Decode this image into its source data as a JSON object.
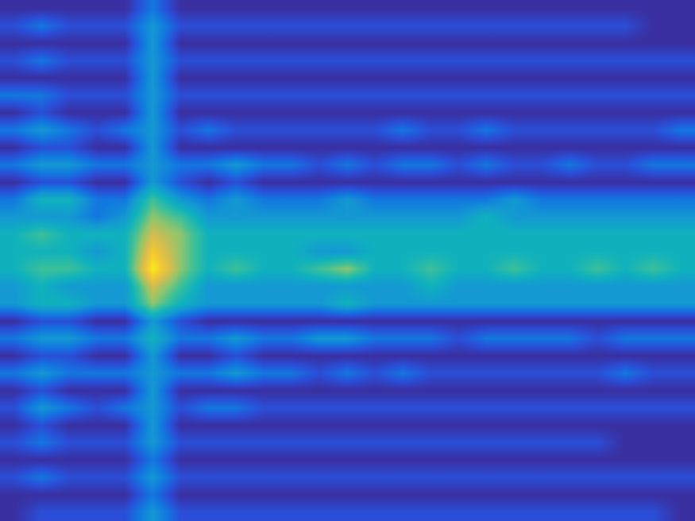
{
  "chart_data": {
    "type": "heatmap",
    "tick_labels": false,
    "clim": [
      0,
      9
    ],
    "cells": [
      [
        0,
        0,
        0,
        0,
        0,
        2,
        0,
        0,
        0,
        0,
        0,
        0,
        0,
        0,
        0,
        0,
        0,
        0,
        0,
        0,
        0,
        0,
        0,
        0,
        0
      ],
      [
        1,
        2,
        1,
        1,
        1,
        3,
        1,
        1,
        1,
        1,
        1,
        1,
        1,
        1,
        1,
        1,
        1,
        1,
        1,
        1,
        1,
        1,
        1,
        0,
        0
      ],
      [
        0,
        0,
        0,
        0,
        0,
        3,
        0,
        0,
        0,
        0,
        0,
        0,
        0,
        0,
        0,
        0,
        0,
        0,
        0,
        0,
        0,
        0,
        0,
        0,
        0
      ],
      [
        1,
        2,
        1,
        1,
        1,
        3,
        1,
        1,
        1,
        1,
        1,
        1,
        1,
        1,
        1,
        1,
        1,
        1,
        1,
        1,
        1,
        1,
        1,
        1,
        1
      ],
      [
        0,
        0,
        0,
        0,
        0,
        3,
        0,
        0,
        0,
        0,
        0,
        0,
        0,
        0,
        0,
        0,
        0,
        0,
        0,
        0,
        0,
        0,
        0,
        0,
        0
      ],
      [
        2,
        2,
        1,
        1,
        1,
        3,
        1,
        1,
        1,
        1,
        1,
        1,
        1,
        1,
        1,
        1,
        1,
        1,
        1,
        1,
        1,
        1,
        1,
        1,
        1
      ],
      [
        0,
        1,
        0,
        0,
        0,
        3,
        0,
        0,
        0,
        0,
        0,
        0,
        0,
        0,
        0,
        0,
        0,
        0,
        0,
        0,
        0,
        0,
        0,
        0,
        0
      ],
      [
        2,
        3,
        2,
        1,
        2,
        3,
        1,
        2,
        1,
        1,
        1,
        1,
        1,
        1,
        2,
        1,
        1,
        2,
        1,
        1,
        1,
        1,
        1,
        1,
        2
      ],
      [
        0,
        1,
        1,
        0,
        0,
        3,
        0,
        0,
        0,
        0,
        0,
        0,
        0,
        0,
        0,
        0,
        0,
        0,
        0,
        0,
        0,
        0,
        0,
        0,
        0
      ],
      [
        2,
        3,
        3,
        2,
        2,
        3,
        2,
        2,
        3,
        2,
        2,
        1,
        2,
        1,
        2,
        2,
        1,
        2,
        1,
        1,
        2,
        1,
        1,
        2,
        2
      ],
      [
        0,
        1,
        1,
        0,
        0,
        3,
        1,
        0,
        1,
        0,
        0,
        0,
        0,
        0,
        0,
        0,
        0,
        0,
        0,
        0,
        0,
        0,
        0,
        0,
        0
      ],
      [
        2,
        4,
        4,
        2,
        2,
        5,
        3,
        2,
        3,
        2,
        2,
        2,
        3,
        2,
        2,
        2,
        2,
        2,
        3,
        2,
        2,
        2,
        2,
        2,
        2
      ],
      [
        3,
        3,
        3,
        2,
        3,
        6,
        5,
        3,
        3,
        3,
        3,
        3,
        3,
        3,
        3,
        3,
        3,
        4,
        3,
        3,
        3,
        3,
        3,
        3,
        3
      ],
      [
        4,
        5,
        4,
        4,
        4,
        7,
        6,
        4,
        4,
        4,
        4,
        4,
        4,
        4,
        4,
        4,
        4,
        4,
        4,
        4,
        4,
        4,
        4,
        4,
        4
      ],
      [
        4,
        4,
        4,
        3,
        4,
        8,
        6,
        4,
        4,
        4,
        4,
        3,
        3,
        4,
        4,
        4,
        4,
        4,
        4,
        4,
        4,
        4,
        4,
        4,
        4
      ],
      [
        4,
        5,
        5,
        4,
        4,
        9,
        6,
        4,
        5,
        4,
        4,
        5,
        6,
        4,
        4,
        5,
        4,
        4,
        5,
        4,
        4,
        5,
        4,
        5,
        4
      ],
      [
        3,
        4,
        3,
        3,
        3,
        7,
        5,
        3,
        3,
        3,
        3,
        3,
        3,
        3,
        3,
        4,
        3,
        3,
        3,
        3,
        3,
        3,
        3,
        3,
        3
      ],
      [
        3,
        4,
        4,
        3,
        3,
        6,
        4,
        3,
        3,
        3,
        3,
        3,
        4,
        3,
        3,
        3,
        3,
        3,
        3,
        3,
        3,
        3,
        3,
        3,
        3
      ],
      [
        0,
        1,
        1,
        0,
        0,
        3,
        1,
        0,
        0,
        0,
        0,
        0,
        0,
        0,
        0,
        0,
        0,
        0,
        0,
        0,
        0,
        0,
        0,
        0,
        0
      ],
      [
        2,
        3,
        3,
        2,
        2,
        4,
        2,
        2,
        3,
        2,
        2,
        3,
        3,
        2,
        2,
        2,
        1,
        2,
        2,
        2,
        2,
        1,
        2,
        2,
        2
      ],
      [
        0,
        1,
        1,
        0,
        0,
        3,
        0,
        0,
        1,
        0,
        0,
        0,
        0,
        0,
        0,
        0,
        0,
        0,
        0,
        0,
        0,
        0,
        0,
        0,
        0
      ],
      [
        2,
        3,
        2,
        2,
        2,
        3,
        2,
        2,
        3,
        2,
        2,
        1,
        2,
        1,
        2,
        1,
        1,
        1,
        1,
        1,
        1,
        1,
        2,
        1,
        1
      ],
      [
        0,
        1,
        0,
        0,
        0,
        3,
        0,
        0,
        0,
        0,
        0,
        0,
        0,
        0,
        0,
        0,
        0,
        0,
        0,
        0,
        0,
        0,
        0,
        0,
        0
      ],
      [
        1,
        3,
        2,
        1,
        2,
        3,
        1,
        2,
        2,
        1,
        1,
        1,
        1,
        1,
        1,
        1,
        1,
        1,
        1,
        1,
        1,
        1,
        1,
        1,
        1
      ],
      [
        0,
        1,
        0,
        0,
        0,
        3,
        0,
        0,
        0,
        0,
        0,
        0,
        0,
        0,
        0,
        0,
        0,
        0,
        0,
        0,
        0,
        0,
        0,
        0,
        0
      ],
      [
        1,
        2,
        1,
        1,
        1,
        3,
        1,
        1,
        1,
        1,
        1,
        1,
        1,
        1,
        1,
        1,
        1,
        1,
        1,
        1,
        1,
        1,
        0,
        0,
        0
      ],
      [
        0,
        0,
        0,
        0,
        0,
        2,
        0,
        0,
        0,
        0,
        0,
        0,
        0,
        0,
        0,
        0,
        0,
        0,
        0,
        0,
        0,
        0,
        0,
        0,
        0
      ],
      [
        1,
        2,
        1,
        1,
        1,
        3,
        1,
        1,
        1,
        1,
        1,
        1,
        1,
        1,
        1,
        1,
        1,
        1,
        1,
        1,
        1,
        1,
        1,
        1,
        1
      ],
      [
        0,
        0,
        0,
        0,
        0,
        2,
        0,
        0,
        0,
        0,
        0,
        0,
        0,
        0,
        0,
        0,
        0,
        0,
        0,
        0,
        0,
        0,
        0,
        0,
        0
      ],
      [
        0,
        1,
        1,
        1,
        1,
        3,
        1,
        1,
        1,
        1,
        1,
        1,
        1,
        1,
        1,
        1,
        1,
        1,
        1,
        1,
        1,
        1,
        1,
        1,
        0
      ]
    ]
  }
}
